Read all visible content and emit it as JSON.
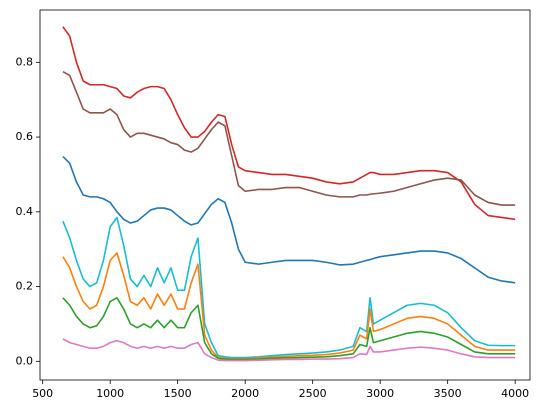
{
  "chart_data": {
    "type": "line",
    "x": [
      650,
      700,
      750,
      800,
      850,
      900,
      950,
      1000,
      1050,
      1100,
      1150,
      1200,
      1250,
      1300,
      1350,
      1400,
      1450,
      1500,
      1550,
      1600,
      1650,
      1700,
      1750,
      1800,
      1850,
      1900,
      1950,
      2000,
      2100,
      2200,
      2300,
      2400,
      2500,
      2600,
      2700,
      2800,
      2850,
      2900,
      2925,
      2950,
      3000,
      3100,
      3200,
      3300,
      3400,
      3500,
      3600,
      3700,
      3800,
      3900,
      4000
    ],
    "series": [
      {
        "color": "#d62728",
        "values": [
          0.895,
          0.87,
          0.8,
          0.75,
          0.74,
          0.74,
          0.74,
          0.735,
          0.73,
          0.71,
          0.705,
          0.72,
          0.73,
          0.735,
          0.735,
          0.73,
          0.7,
          0.66,
          0.625,
          0.6,
          0.6,
          0.615,
          0.64,
          0.66,
          0.655,
          0.58,
          0.52,
          0.51,
          0.505,
          0.5,
          0.5,
          0.495,
          0.49,
          0.48,
          0.475,
          0.48,
          0.49,
          0.5,
          0.505,
          0.505,
          0.5,
          0.5,
          0.505,
          0.51,
          0.51,
          0.505,
          0.48,
          0.42,
          0.39,
          0.385,
          0.38
        ]
      },
      {
        "color": "#8c564b",
        "values": [
          0.775,
          0.765,
          0.72,
          0.675,
          0.665,
          0.665,
          0.665,
          0.675,
          0.66,
          0.62,
          0.6,
          0.61,
          0.61,
          0.605,
          0.6,
          0.595,
          0.585,
          0.58,
          0.565,
          0.56,
          0.57,
          0.595,
          0.62,
          0.64,
          0.63,
          0.55,
          0.47,
          0.455,
          0.46,
          0.46,
          0.465,
          0.465,
          0.455,
          0.445,
          0.44,
          0.44,
          0.445,
          0.445,
          0.447,
          0.448,
          0.45,
          0.455,
          0.465,
          0.475,
          0.485,
          0.49,
          0.485,
          0.445,
          0.425,
          0.418,
          0.418
        ]
      },
      {
        "color": "#1f77b4",
        "values": [
          0.548,
          0.53,
          0.48,
          0.445,
          0.44,
          0.44,
          0.435,
          0.425,
          0.4,
          0.38,
          0.37,
          0.375,
          0.39,
          0.405,
          0.41,
          0.41,
          0.405,
          0.39,
          0.375,
          0.365,
          0.37,
          0.395,
          0.42,
          0.435,
          0.425,
          0.37,
          0.3,
          0.265,
          0.26,
          0.265,
          0.27,
          0.27,
          0.27,
          0.265,
          0.258,
          0.26,
          0.265,
          0.27,
          0.272,
          0.275,
          0.28,
          0.285,
          0.29,
          0.295,
          0.295,
          0.29,
          0.275,
          0.25,
          0.225,
          0.215,
          0.21
        ]
      },
      {
        "color": "#17becf",
        "values": [
          0.375,
          0.33,
          0.27,
          0.22,
          0.2,
          0.21,
          0.27,
          0.36,
          0.385,
          0.31,
          0.22,
          0.2,
          0.23,
          0.2,
          0.25,
          0.21,
          0.25,
          0.19,
          0.19,
          0.28,
          0.33,
          0.1,
          0.05,
          0.015,
          0.012,
          0.01,
          0.01,
          0.01,
          0.012,
          0.015,
          0.018,
          0.02,
          0.022,
          0.025,
          0.03,
          0.04,
          0.09,
          0.08,
          0.17,
          0.1,
          0.11,
          0.13,
          0.15,
          0.155,
          0.15,
          0.13,
          0.09,
          0.055,
          0.043,
          0.042,
          0.042
        ]
      },
      {
        "color": "#ff7f0e",
        "values": [
          0.28,
          0.25,
          0.2,
          0.16,
          0.14,
          0.15,
          0.2,
          0.27,
          0.29,
          0.23,
          0.16,
          0.15,
          0.17,
          0.14,
          0.18,
          0.15,
          0.18,
          0.14,
          0.14,
          0.21,
          0.26,
          0.07,
          0.03,
          0.01,
          0.008,
          0.007,
          0.007,
          0.007,
          0.009,
          0.011,
          0.013,
          0.015,
          0.016,
          0.018,
          0.022,
          0.03,
          0.07,
          0.06,
          0.14,
          0.08,
          0.085,
          0.1,
          0.115,
          0.12,
          0.115,
          0.1,
          0.07,
          0.04,
          0.03,
          0.03,
          0.03
        ]
      },
      {
        "color": "#2ca02c",
        "values": [
          0.17,
          0.15,
          0.12,
          0.1,
          0.09,
          0.095,
          0.12,
          0.16,
          0.17,
          0.14,
          0.1,
          0.09,
          0.1,
          0.09,
          0.11,
          0.09,
          0.11,
          0.09,
          0.09,
          0.13,
          0.15,
          0.05,
          0.02,
          0.008,
          0.006,
          0.005,
          0.005,
          0.005,
          0.006,
          0.008,
          0.009,
          0.01,
          0.011,
          0.012,
          0.015,
          0.02,
          0.045,
          0.04,
          0.09,
          0.05,
          0.055,
          0.065,
          0.075,
          0.08,
          0.075,
          0.065,
          0.045,
          0.025,
          0.02,
          0.02,
          0.02
        ]
      },
      {
        "color": "#e377c2",
        "values": [
          0.06,
          0.05,
          0.045,
          0.04,
          0.035,
          0.035,
          0.04,
          0.05,
          0.055,
          0.05,
          0.04,
          0.035,
          0.04,
          0.035,
          0.04,
          0.035,
          0.04,
          0.035,
          0.035,
          0.045,
          0.05,
          0.02,
          0.01,
          0.003,
          0.002,
          0.002,
          0.002,
          0.002,
          0.003,
          0.004,
          0.005,
          0.005,
          0.006,
          0.006,
          0.007,
          0.01,
          0.02,
          0.018,
          0.04,
          0.025,
          0.025,
          0.03,
          0.035,
          0.038,
          0.035,
          0.03,
          0.02,
          0.012,
          0.01,
          0.01,
          0.01
        ]
      }
    ],
    "xlim": [
      480,
      4110
    ],
    "ylim": [
      -0.05,
      0.94
    ],
    "xticks": [
      500,
      1000,
      1500,
      2000,
      2500,
      3000,
      3500,
      4000
    ],
    "yticks": [
      {
        "value": 0,
        "label": "0.0"
      },
      0.2,
      0.4,
      0.6,
      0.8
    ],
    "grid": false
  }
}
